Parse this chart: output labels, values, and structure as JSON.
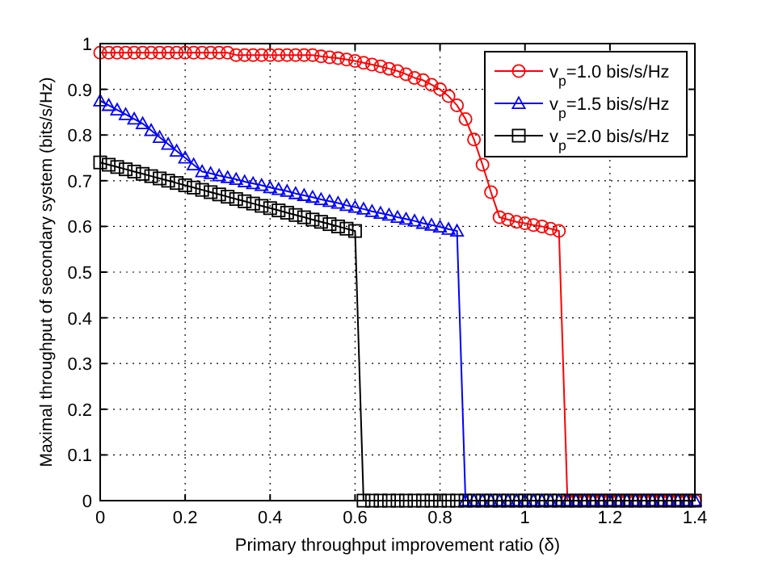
{
  "chart_data": {
    "type": "line",
    "xlabel": "Primary throughput improvement ratio (δ)",
    "ylabel": "Maximal throughput of secondary system (bits/s/Hz)",
    "x": [
      0,
      0.02,
      0.04,
      0.06,
      0.08,
      0.1,
      0.12,
      0.14,
      0.16,
      0.18,
      0.2,
      0.22,
      0.24,
      0.26,
      0.28,
      0.3,
      0.32,
      0.34,
      0.36,
      0.38,
      0.4,
      0.42,
      0.44,
      0.46,
      0.48,
      0.5,
      0.52,
      0.54,
      0.56,
      0.58,
      0.6,
      0.62,
      0.64,
      0.66,
      0.68,
      0.7,
      0.72,
      0.74,
      0.76,
      0.78,
      0.8,
      0.82,
      0.84,
      0.86,
      0.88,
      0.9,
      0.92,
      0.94,
      0.96,
      0.98,
      1,
      1.02,
      1.04,
      1.06,
      1.08,
      1.1,
      1.12,
      1.14,
      1.16,
      1.18,
      1.2,
      1.22,
      1.24,
      1.26,
      1.28,
      1.3,
      1.32,
      1.34,
      1.36,
      1.38,
      1.4
    ],
    "series": [
      {
        "name": "v$_{p}$=1.0 bis/s/Hz",
        "color": "#ff0000",
        "marker": "circle",
        "values": [
          0.98,
          0.98,
          0.98,
          0.98,
          0.98,
          0.98,
          0.98,
          0.98,
          0.98,
          0.98,
          0.98,
          0.98,
          0.98,
          0.98,
          0.98,
          0.98,
          0.975,
          0.975,
          0.975,
          0.975,
          0.975,
          0.975,
          0.975,
          0.975,
          0.975,
          0.975,
          0.972,
          0.97,
          0.968,
          0.965,
          0.962,
          0.958,
          0.954,
          0.95,
          0.945,
          0.94,
          0.933,
          0.925,
          0.92,
          0.91,
          0.9,
          0.885,
          0.865,
          0.835,
          0.79,
          0.735,
          0.675,
          0.62,
          0.615,
          0.61,
          0.607,
          0.603,
          0.6,
          0.595,
          0.59,
          0,
          0,
          0,
          0,
          0,
          0,
          0,
          0,
          0,
          0,
          0,
          0,
          0,
          0,
          0,
          0
        ]
      },
      {
        "name": "v$_{p}$=1.5 bis/s/Hz",
        "color": "#0000ff",
        "marker": "triangle",
        "values": [
          0.875,
          0.865,
          0.855,
          0.845,
          0.835,
          0.825,
          0.81,
          0.795,
          0.78,
          0.765,
          0.75,
          0.735,
          0.72,
          0.716,
          0.711,
          0.707,
          0.703,
          0.698,
          0.694,
          0.69,
          0.685,
          0.681,
          0.677,
          0.672,
          0.668,
          0.664,
          0.659,
          0.655,
          0.651,
          0.646,
          0.642,
          0.638,
          0.633,
          0.629,
          0.625,
          0.62,
          0.616,
          0.612,
          0.607,
          0.603,
          0.599,
          0.594,
          0.59,
          0,
          0,
          0,
          0,
          0,
          0,
          0,
          0,
          0,
          0,
          0,
          0,
          0,
          0,
          0,
          0,
          0,
          0,
          0,
          0,
          0,
          0,
          0,
          0,
          0,
          0,
          0,
          0
        ]
      },
      {
        "name": "v$_{p}$=2.0 bis/s/Hz",
        "color": "#000000",
        "marker": "square",
        "values": [
          0.74,
          0.735,
          0.73,
          0.725,
          0.72,
          0.715,
          0.71,
          0.705,
          0.7,
          0.695,
          0.69,
          0.685,
          0.68,
          0.675,
          0.67,
          0.665,
          0.66,
          0.655,
          0.65,
          0.645,
          0.64,
          0.635,
          0.63,
          0.625,
          0.62,
          0.615,
          0.61,
          0.605,
          0.6,
          0.595,
          0.59,
          0,
          0,
          0,
          0,
          0,
          0,
          0,
          0,
          0,
          0,
          0,
          0,
          0,
          0,
          0,
          0,
          0,
          0,
          0,
          0,
          0,
          0,
          0,
          0,
          0,
          0,
          0,
          0,
          0,
          0,
          0,
          0,
          0,
          0,
          0,
          0,
          0,
          0,
          0,
          0
        ]
      }
    ],
    "xlim": [
      0,
      1.4
    ],
    "xticks": [
      0,
      0.2,
      0.4,
      0.6,
      0.8,
      1,
      1.2,
      1.4
    ],
    "ylim": [
      0,
      1
    ],
    "yticks": [
      0,
      0.1,
      0.2,
      0.3,
      0.4,
      0.5,
      0.6,
      0.7,
      0.8,
      0.9,
      1
    ],
    "grid": true,
    "legend": "top right",
    "line_style": "solid"
  }
}
